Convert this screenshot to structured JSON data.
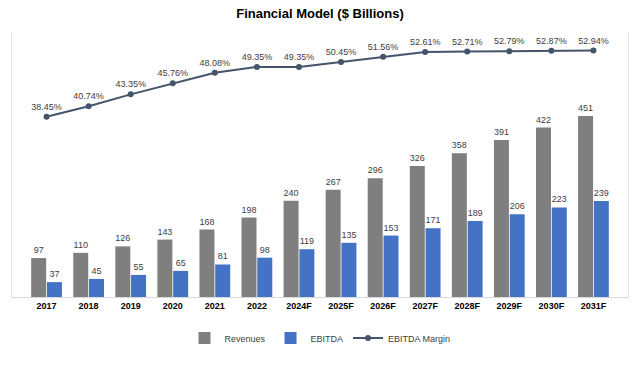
{
  "chart_data": {
    "type": "bar",
    "title": "Financial Model ($ Billions)",
    "categories": [
      "2017",
      "2018",
      "2019",
      "2020",
      "2021",
      "2022",
      "2024F",
      "2025F",
      "2026F",
      "2027F",
      "2028F",
      "2029F",
      "2030F",
      "2031F"
    ],
    "series": [
      {
        "name": "Revenues",
        "type": "bar",
        "color": "#7f7f7f",
        "values": [
          97,
          110,
          126,
          143,
          168,
          198,
          240,
          267,
          296,
          326,
          358,
          391,
          422,
          451
        ]
      },
      {
        "name": "EBITDA",
        "type": "bar",
        "color": "#4472c4",
        "values": [
          37,
          45,
          55,
          65,
          81,
          98,
          119,
          135,
          153,
          171,
          189,
          206,
          223,
          239
        ]
      },
      {
        "name": "EBITDA Margin",
        "type": "line",
        "axis": "y2",
        "color": "#44546a",
        "marker": "circle",
        "values": [
          38.45,
          40.74,
          43.35,
          45.76,
          48.08,
          49.35,
          49.35,
          50.45,
          51.56,
          52.61,
          52.71,
          52.79,
          52.87,
          52.94
        ],
        "value_labels": [
          "38.45%",
          "40.74%",
          "43.35%",
          "45.76%",
          "48.08%",
          "49.35%",
          "49.35%",
          "50.45%",
          "51.56%",
          "52.61%",
          "52.71%",
          "52.79%",
          "52.87%",
          "52.94%"
        ]
      }
    ],
    "ylim": [
      0,
      660
    ],
    "y2lim": [
      -1,
      57
    ],
    "grid": false,
    "legend": "bottom",
    "data_labels": true,
    "tick_labels": "x"
  }
}
